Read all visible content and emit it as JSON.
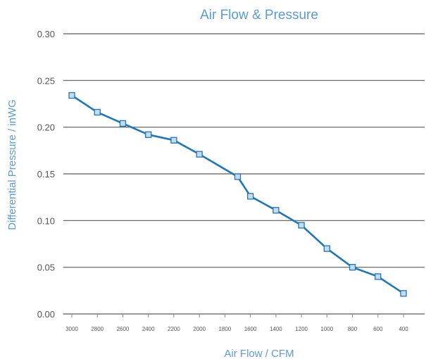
{
  "chart_data": {
    "type": "line",
    "title": "Air Flow & Pressure",
    "xlabel": "Air Flow / CFM",
    "ylabel": "Differential Pressure  /  inWG",
    "x_tick_labels": [
      "3000",
      "2800",
      "2600",
      "2400",
      "2200",
      "2000",
      "1800",
      "1600",
      "1400",
      "1200",
      "1000",
      "800",
      "600",
      "400"
    ],
    "y_tick_labels": [
      "0.00",
      "0.05",
      "0.10",
      "0.15",
      "0.20",
      "0.25",
      "0.30"
    ],
    "ylim": [
      0,
      0.3
    ],
    "xlim": [
      3000,
      400
    ],
    "x_reversed": true,
    "grid": "horizontal",
    "series": [
      {
        "x": [
          3000,
          2800,
          2600,
          2400,
          2200,
          2000,
          1700,
          1600,
          1400,
          1200,
          1000,
          800,
          600,
          400
        ],
        "y": [
          0.234,
          0.216,
          0.204,
          0.192,
          0.186,
          0.171,
          0.147,
          0.126,
          0.111,
          0.095,
          0.07,
          0.05,
          0.04,
          0.022
        ],
        "color": "#1f77b4",
        "marker": "square",
        "marker_fill": "#c6dbef"
      }
    ]
  }
}
